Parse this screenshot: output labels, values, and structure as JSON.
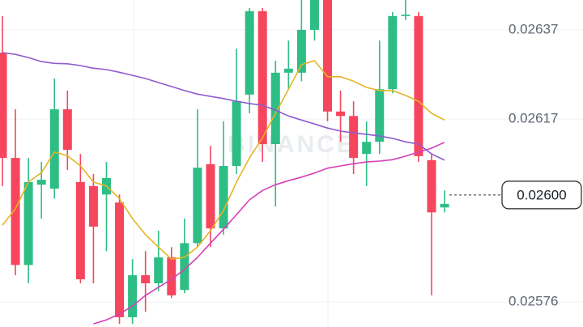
{
  "chart_data": {
    "type": "candlestick",
    "watermark": "BINANCE",
    "up_color": "#2ebd85",
    "down_color": "#f6465d",
    "ylim": [
      0.025704,
      0.026437
    ],
    "yticks": [
      0.02637,
      0.02617,
      0.02576
    ],
    "grid": true,
    "current_price": {
      "value": 0.026,
      "label": "0.02600"
    },
    "open": [
      0.026319,
      0.026083,
      0.025843,
      0.026023,
      0.026014,
      0.026192,
      0.026029,
      0.02602,
      0.026001,
      0.025983,
      0.025726,
      0.02582,
      0.025802,
      0.02586,
      0.025787,
      0.025892,
      0.026069,
      0.025925,
      0.026065,
      0.026225,
      0.026412,
      0.026114,
      0.026274,
      0.026274,
      0.02637,
      0.026437,
      0.026187,
      0.026177,
      0.026092,
      0.026119,
      0.026237,
      0.026401,
      0.026401,
      0.026078,
      0.025972
    ],
    "high": [
      0.026401,
      0.026192,
      0.026083,
      0.026074,
      0.026261,
      0.026234,
      0.026092,
      0.026047,
      0.026074,
      0.026001,
      0.025856,
      0.025874,
      0.02592,
      0.025883,
      0.025947,
      0.026192,
      0.02611,
      0.026165,
      0.026328,
      0.026419,
      0.026419,
      0.026301,
      0.026346,
      0.026437,
      0.026473,
      0.026455,
      0.026234,
      0.02621,
      0.026165,
      0.026346,
      0.02641,
      0.026437,
      0.02641,
      0.026092,
      0.02601
    ],
    "low": [
      0.02602,
      0.02582,
      0.025802,
      0.025947,
      0.025992,
      0.026056,
      0.025802,
      0.025802,
      0.025874,
      0.025711,
      0.025711,
      0.025738,
      0.025784,
      0.025769,
      0.02578,
      0.025883,
      0.025883,
      0.025911,
      0.026047,
      0.026183,
      0.026074,
      0.025974,
      0.026237,
      0.026255,
      0.026346,
      0.026165,
      0.026119,
      0.026047,
      0.02602,
      0.026092,
      0.026228,
      0.026392,
      0.026074,
      0.025775,
      0.025961
    ],
    "close": [
      0.026083,
      0.025843,
      0.026029,
      0.026034,
      0.026192,
      0.026101,
      0.025811,
      0.025929,
      0.026038,
      0.025726,
      0.02582,
      0.025802,
      0.02586,
      0.025775,
      0.025892,
      0.026061,
      0.025925,
      0.026065,
      0.02621,
      0.026412,
      0.026114,
      0.026274,
      0.026283,
      0.02637,
      0.026446,
      0.026187,
      0.026177,
      0.026083,
      0.026119,
      0.026237,
      0.026401,
      0.026404,
      0.026087,
      0.025961,
      0.02598
    ],
    "lines": [
      {
        "color": "#e6b422",
        "values": [
          0.025932,
          0.025969,
          0.026029,
          0.02605,
          0.026096,
          0.026088,
          0.026065,
          0.026029,
          0.02602,
          0.025992,
          0.025947,
          0.025911,
          0.025883,
          0.025856,
          0.02586,
          0.025883,
          0.02592,
          0.025965,
          0.026029,
          0.026083,
          0.026128,
          0.026183,
          0.026237,
          0.026292,
          0.026301,
          0.026265,
          0.026265,
          0.026255,
          0.026241,
          0.026234,
          0.026234,
          0.026223,
          0.02621,
          0.026183,
          0.026168
        ]
      },
      {
        "color": "#d63fb9",
        "values": [
          null,
          null,
          null,
          null,
          null,
          null,
          null,
          0.025711,
          0.02572,
          0.025733,
          0.025751,
          0.025775,
          0.025793,
          0.025811,
          0.025833,
          0.02586,
          0.025892,
          0.025923,
          0.025956,
          0.025989,
          0.02601,
          0.026023,
          0.026032,
          0.02604,
          0.026049,
          0.02606,
          0.026065,
          0.02607,
          0.026074,
          0.026076,
          0.026079,
          0.026087,
          0.026096,
          0.026105,
          0.026118
        ]
      },
      {
        "color": "#8e5ccf",
        "values": [
          0.026319,
          0.026315,
          0.026308,
          0.026299,
          0.026295,
          0.026294,
          0.02629,
          0.026284,
          0.026281,
          0.026275,
          0.026268,
          0.026261,
          0.026252,
          0.026243,
          0.026234,
          0.026226,
          0.026221,
          0.026216,
          0.02621,
          0.026205,
          0.026201,
          0.02619,
          0.026177,
          0.026168,
          0.026159,
          0.02615,
          0.026143,
          0.026139,
          0.026136,
          0.026132,
          0.026127,
          0.026119,
          0.026114,
          0.026092,
          0.026078
        ]
      }
    ]
  }
}
